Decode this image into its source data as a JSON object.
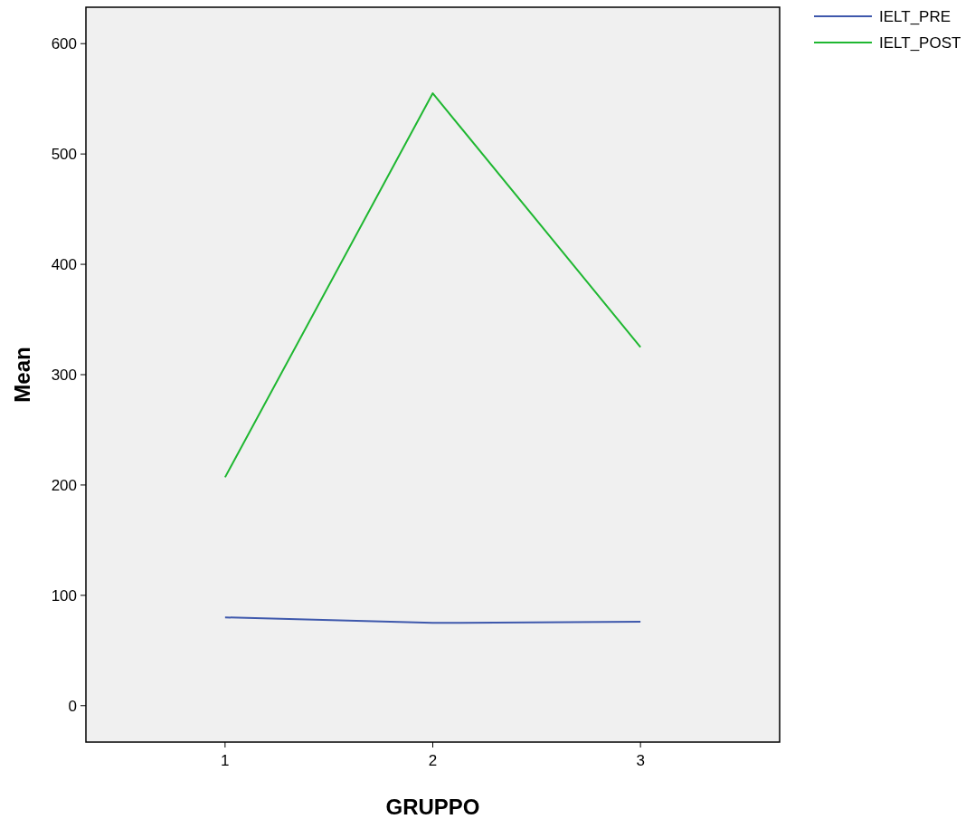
{
  "chart_data": {
    "type": "line",
    "xlabel": "GRUPPO",
    "ylabel": "Mean",
    "categories": [
      "1",
      "2",
      "3"
    ],
    "series": [
      {
        "name": "IELT_PRE",
        "color": "#3e58ac",
        "values": [
          80,
          75,
          76
        ]
      },
      {
        "name": "IELT_POST",
        "color": "#1fb731",
        "values": [
          207,
          555,
          325
        ]
      }
    ],
    "ylim": [
      -33,
      633
    ],
    "yticks": [
      0,
      100,
      200,
      300,
      400,
      500,
      600
    ],
    "legend": "top right",
    "grid": false,
    "marker": "none",
    "line_style": "solid"
  }
}
